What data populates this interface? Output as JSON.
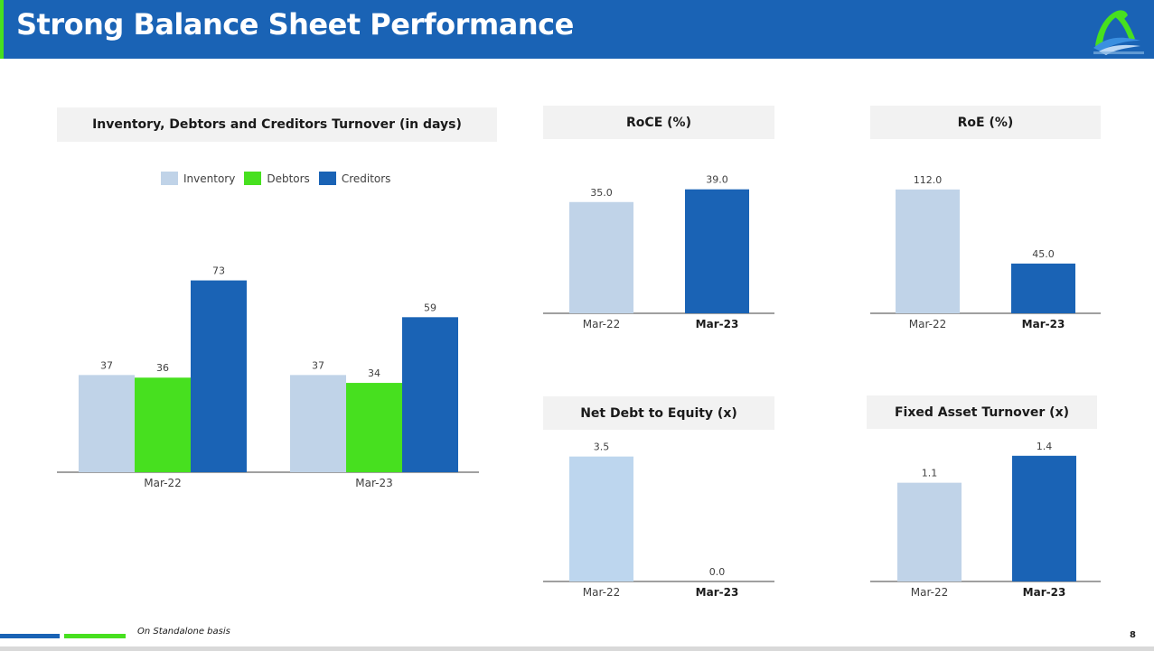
{
  "header": {
    "title": "Strong Balance Sheet Performance"
  },
  "footer": {
    "note": "On Standalone basis",
    "page_number": "8"
  },
  "colors": {
    "brand_blue": "#1a63b5",
    "brand_green": "#47e01f",
    "light_blue": "#c0d3e8",
    "inventory": "#c0d3e8",
    "debtors": "#47e01f",
    "creditors": "#1a63b5",
    "title_bg": "#f2f2f2"
  },
  "chart_data": [
    {
      "type": "bar",
      "title": "Inventory, Debtors and Creditors Turnover (in days)",
      "categories": [
        "Mar-22",
        "Mar-23"
      ],
      "series": [
        {
          "name": "Inventory",
          "values": [
            37,
            37
          ],
          "labels": [
            "37",
            "37"
          ]
        },
        {
          "name": "Debtors",
          "values": [
            36,
            34
          ],
          "labels": [
            "36",
            "34"
          ]
        },
        {
          "name": "Creditors",
          "values": [
            73,
            59
          ],
          "labels": [
            "73",
            "59"
          ]
        }
      ],
      "ylim": [
        0,
        100
      ],
      "legend": "top",
      "grid": false
    },
    {
      "type": "bar",
      "title": "RoCE (%)",
      "categories": [
        "Mar-22",
        "Mar-23"
      ],
      "values": [
        35.0,
        39.0
      ],
      "value_labels": [
        "35.0",
        "39.0"
      ],
      "ylim": [
        0,
        48
      ],
      "grid": false
    },
    {
      "type": "bar",
      "title": "RoE (%)",
      "categories": [
        "Mar-22",
        "Mar-23"
      ],
      "values": [
        112.0,
        45.0
      ],
      "value_labels": [
        "112.0",
        "45.0"
      ],
      "ylim": [
        0,
        138
      ],
      "grid": false
    },
    {
      "type": "bar",
      "title": "Net Debt to Equity (x)",
      "categories": [
        "Mar-22",
        "Mar-23"
      ],
      "values": [
        3.5,
        0.0
      ],
      "value_labels": [
        "3.5",
        "0.0"
      ],
      "ylim": [
        0,
        4.3
      ],
      "grid": false
    },
    {
      "type": "bar",
      "title": "Fixed Asset Turnover (x)",
      "categories": [
        "Mar-22",
        "Mar-23"
      ],
      "values": [
        1.1,
        1.4
      ],
      "value_labels": [
        "1.1",
        "1.4"
      ],
      "ylim": [
        0,
        1.75
      ],
      "grid": false
    }
  ]
}
